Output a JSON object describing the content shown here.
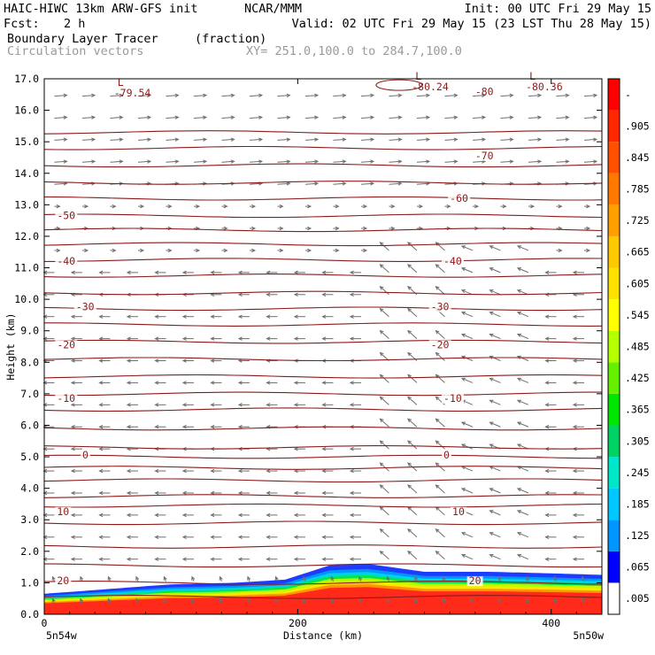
{
  "header": {
    "model_title": "HAIC-HIWC 13km ARW-GFS init",
    "org": "NCAR/MMM",
    "init": "Init: 00 UTC Fri 29 May 15",
    "fcst_label": "Fcst:",
    "fcst_value": "2 h",
    "valid": "Valid: 02 UTC Fri 29 May 15 (23 LST Thu 28 May 15)",
    "field_name": "Boundary Layer Tracer",
    "field_units": "(fraction)",
    "vector_label": "Circulation vectors",
    "xy_label": "XY= 251.0,100.0 to 284.7,100.0"
  },
  "colors": {
    "contour": "#8b1a1a",
    "vector": "#6e6e6e",
    "tracer_high": "#ff1a1a",
    "tracer_low": "#1e3cff"
  },
  "chart_data": {
    "type": "heatmap",
    "title": "Boundary Layer Tracer",
    "units": "fraction",
    "xlabel": "Distance (km)",
    "ylabel": "Height (km)",
    "xlim": [
      0,
      440
    ],
    "ylim": [
      0,
      17
    ],
    "x_ticks": [
      0,
      200,
      400
    ],
    "y_ticks": [
      "0.0",
      "1.0",
      "2.0",
      "3.0",
      "4.0",
      "5.0",
      "6.0",
      "7.0",
      "8.0",
      "9.0",
      "10.0",
      "11.0",
      "12.0",
      "13.0",
      "14.0",
      "15.0",
      "16.0",
      "17.0"
    ],
    "x_endpoint_labels": [
      "5n54w",
      "5n50w"
    ],
    "colorbar": {
      "labels": [
        ".005",
        ".065",
        ".125",
        ".185",
        ".245",
        ".305",
        ".365",
        ".425",
        ".485",
        ".545",
        ".605",
        ".665",
        ".725",
        ".785",
        ".845",
        ".905",
        "-"
      ],
      "colors": [
        "#ffffff",
        "#0000ff",
        "#0096ff",
        "#00c8ff",
        "#00e6c8",
        "#00d264",
        "#00e600",
        "#64f000",
        "#b4ff00",
        "#ffff00",
        "#ffe100",
        "#ffc800",
        "#ffa000",
        "#ff7800",
        "#ff5000",
        "#ff2800",
        "#ff0000"
      ]
    },
    "tracer_top_km": [
      {
        "x": 0,
        "top": 0.65
      },
      {
        "x": 50,
        "top": 0.8
      },
      {
        "x": 100,
        "top": 0.95
      },
      {
        "x": 150,
        "top": 1.0
      },
      {
        "x": 190,
        "top": 1.1
      },
      {
        "x": 225,
        "top": 1.55
      },
      {
        "x": 255,
        "top": 1.6
      },
      {
        "x": 300,
        "top": 1.35
      },
      {
        "x": 350,
        "top": 1.35
      },
      {
        "x": 400,
        "top": 1.3
      },
      {
        "x": 440,
        "top": 1.25
      }
    ],
    "temperature_contours": {
      "levels_km": [
        0.55,
        1.0,
        1.55,
        2.15,
        2.9,
        3.45,
        3.75,
        4.25,
        4.65,
        5.0,
        5.3,
        5.9,
        6.5,
        7.0,
        7.55,
        8.1,
        8.65,
        9.2,
        9.7,
        10.2,
        10.75,
        11.25,
        11.75,
        12.2,
        12.65,
        13.2,
        13.7,
        14.25,
        14.8,
        15.3
      ],
      "labels": [
        {
          "x": 10,
          "y": 3.15,
          "text": "10"
        },
        {
          "x": 322,
          "y": 3.15,
          "text": "10"
        },
        {
          "x": 10,
          "y": 0.95,
          "text": "20"
        },
        {
          "x": 335,
          "y": 0.95,
          "text": "20"
        },
        {
          "x": 30,
          "y": 4.95,
          "text": "0"
        },
        {
          "x": 315,
          "y": 4.95,
          "text": "0"
        },
        {
          "x": 10,
          "y": 6.75,
          "text": "-10"
        },
        {
          "x": 315,
          "y": 6.75,
          "text": "-10"
        },
        {
          "x": 10,
          "y": 8.45,
          "text": "-20"
        },
        {
          "x": 305,
          "y": 8.45,
          "text": "-20"
        },
        {
          "x": 25,
          "y": 9.65,
          "text": "-30"
        },
        {
          "x": 305,
          "y": 9.65,
          "text": "-30"
        },
        {
          "x": 10,
          "y": 11.1,
          "text": "-40"
        },
        {
          "x": 315,
          "y": 11.1,
          "text": "-40"
        },
        {
          "x": 10,
          "y": 12.55,
          "text": "-50"
        },
        {
          "x": 320,
          "y": 13.1,
          "text": "-60"
        },
        {
          "x": 340,
          "y": 14.45,
          "text": "-70"
        }
      ],
      "lows": [
        {
          "x": 55,
          "y": 16.6,
          "label": "L",
          "value": "-79.54"
        },
        {
          "x": 290,
          "y": 16.8,
          "label": "L",
          "value": "-80.24"
        },
        {
          "x": 340,
          "y": 16.65,
          "label": "",
          "value": "-80"
        },
        {
          "x": 380,
          "y": 16.8,
          "label": "L",
          "value": "-80.36"
        }
      ]
    }
  }
}
